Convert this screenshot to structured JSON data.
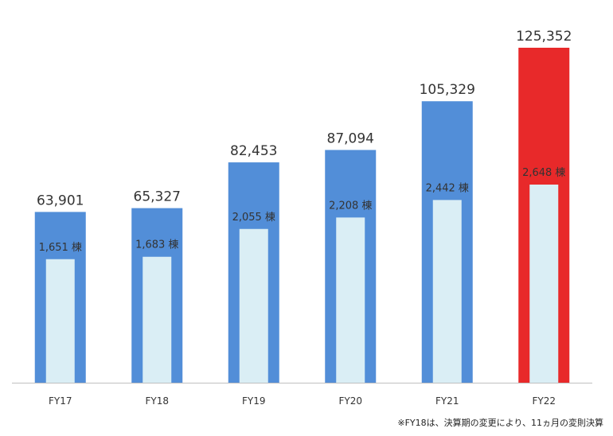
{
  "chart_data": {
    "type": "bar",
    "categories": [
      "FY17",
      "FY18",
      "FY19",
      "FY20",
      "FY21",
      "FY22"
    ],
    "series": [
      {
        "values": [
          63901,
          65327,
          82453,
          87094,
          105329,
          125352
        ],
        "labels": [
          "63,901",
          "65,327",
          "82,453",
          "87,094",
          "105,329",
          "125,352"
        ]
      },
      {
        "values": [
          1651,
          1683,
          2055,
          2208,
          2442,
          2648
        ],
        "labels": [
          "1,651 棟",
          "1,683 棟",
          "2,055 棟",
          "2,208 棟",
          "2,442 棟",
          "2,648 棟"
        ]
      }
    ],
    "colors": {
      "outer": "#528ed8",
      "outer_highlight": "#e8292a",
      "inner": "#daeef5",
      "axis": "#bfbfbf"
    },
    "highlight_index": 5,
    "footnote": "※FY18は、決算期の変更により、11ヵ月の変則決算"
  }
}
